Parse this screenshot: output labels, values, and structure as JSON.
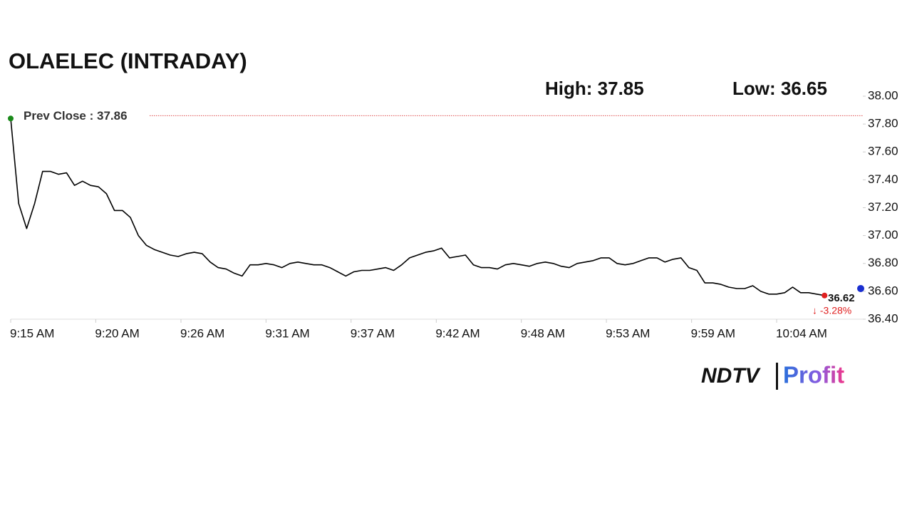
{
  "chart_data": {
    "type": "line",
    "title": "OLAELEC (INTRADAY)",
    "high_label": "High: 37.85",
    "low_label": "Low: 36.65",
    "prev_close": 37.86,
    "prev_close_label": "Prev Close : 37.86",
    "last_price": 36.62,
    "change_label": "↓ -3.28%",
    "brand": {
      "left": "NDTV",
      "right": "Profit"
    },
    "x": [
      555,
      555.5,
      556,
      556.5,
      557,
      557.5,
      558,
      558.5,
      559,
      559.5,
      560,
      560.5,
      561,
      561.5,
      562,
      562.5,
      563,
      563.5,
      564,
      564.5,
      565,
      565.5,
      566,
      566.5,
      567,
      567.5,
      568,
      568.5,
      569,
      569.5,
      570,
      570.5,
      571,
      571.5,
      572,
      572.5,
      573,
      573.5,
      574,
      574.5,
      575,
      575.5,
      576,
      576.5,
      577,
      577.5,
      578,
      578.5,
      579,
      579.5,
      580,
      580.5,
      581,
      581.5,
      582,
      582.5,
      583,
      583.5,
      584,
      584.5,
      585,
      585.5,
      586,
      586.5,
      587,
      587.5,
      588,
      588.5,
      589,
      589.5,
      590,
      590.5,
      591,
      591.5,
      592,
      592.5,
      593,
      593.5,
      594,
      594.5,
      595,
      595.5,
      596,
      596.5,
      597,
      597.5,
      598,
      598.5,
      599,
      599.5,
      600,
      600.5,
      601,
      601.5,
      602,
      602.5,
      603,
      603.5,
      604,
      604.5,
      605,
      605.5,
      606
    ],
    "series": [
      {
        "color": "#000000",
        "values": [
          37.84,
          37.23,
          37.05,
          37.23,
          37.46,
          37.46,
          37.44,
          37.45,
          37.36,
          37.39,
          37.36,
          37.35,
          37.3,
          37.18,
          37.18,
          37.13,
          37.0,
          36.93,
          36.9,
          36.88,
          36.86,
          36.85,
          36.87,
          36.88,
          36.87,
          36.81,
          36.77,
          36.76,
          36.73,
          36.71,
          36.79,
          36.79,
          36.8,
          36.79,
          36.77,
          36.8,
          36.81,
          36.8,
          36.79,
          36.79,
          36.77,
          36.74,
          36.71,
          36.74,
          36.75,
          36.75,
          36.76,
          36.77,
          36.75,
          36.79,
          36.84,
          36.86,
          36.88,
          36.89,
          36.91,
          36.84,
          36.85,
          36.86,
          36.79,
          36.77,
          36.77,
          36.76,
          36.79,
          36.8,
          36.79,
          36.78,
          36.8,
          36.81,
          36.8,
          36.78,
          36.77,
          36.8,
          36.81,
          36.82,
          36.84,
          36.84,
          36.8,
          36.79,
          36.8,
          36.82,
          36.84,
          36.84,
          36.81,
          36.83,
          36.84,
          36.77,
          36.75,
          36.66,
          36.66,
          36.65,
          36.63,
          36.62,
          36.62,
          36.64,
          36.6,
          36.58,
          36.58,
          36.59,
          36.63,
          36.59,
          36.59,
          36.58,
          36.57
        ]
      }
    ],
    "xlim": [
      555,
      608.4
    ],
    "xticks": [
      {
        "value": 555,
        "label": "9:15 AM"
      },
      {
        "value": 560.33,
        "label": "9:20 AM"
      },
      {
        "value": 565.67,
        "label": "9:26 AM"
      },
      {
        "value": 571,
        "label": "9:31 AM"
      },
      {
        "value": 576.33,
        "label": "9:37 AM"
      },
      {
        "value": 581.67,
        "label": "9:42 AM"
      },
      {
        "value": 587,
        "label": "9:48 AM"
      },
      {
        "value": 592.33,
        "label": "9:53 AM"
      },
      {
        "value": 597.67,
        "label": "9:59 AM"
      },
      {
        "value": 603,
        "label": "10:04 AM"
      }
    ],
    "ylim": [
      36.4,
      38.0
    ],
    "yticks": [
      {
        "value": 36.4,
        "label": "36.40"
      },
      {
        "value": 36.6,
        "label": "36.60"
      },
      {
        "value": 36.8,
        "label": "36.80"
      },
      {
        "value": 37.0,
        "label": "37.00"
      },
      {
        "value": 37.2,
        "label": "37.20"
      },
      {
        "value": 37.4,
        "label": "37.40"
      },
      {
        "value": 37.6,
        "label": "37.60"
      },
      {
        "value": 37.8,
        "label": "37.80"
      },
      {
        "value": 38.0,
        "label": "38.00"
      }
    ]
  }
}
